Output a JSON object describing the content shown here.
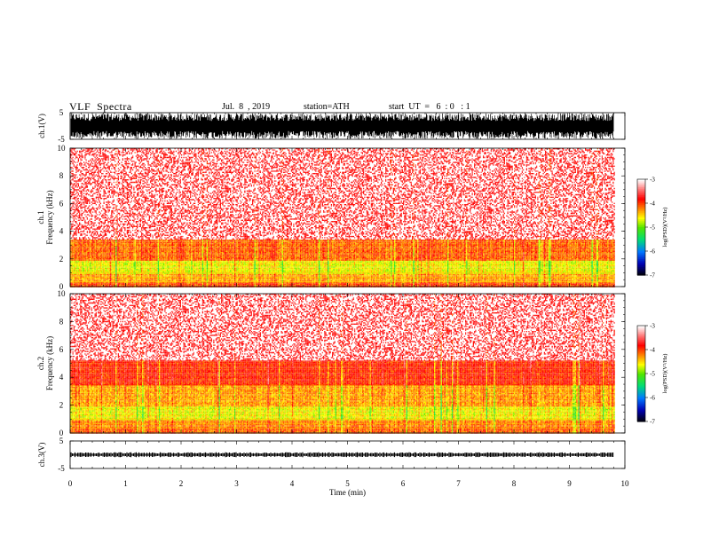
{
  "header": {
    "title": "VLF  Spectra",
    "date": "Jul.  8  , 2019",
    "station": "station=ATH",
    "start": "start  UT  =   6  : 0   : 1"
  },
  "chart_data": [
    {
      "type": "line",
      "panel": "ch1-waveform",
      "ylabel": "ch.1(V)",
      "ylim": [
        -5,
        5
      ],
      "yticks": [
        "5",
        "-5"
      ],
      "xlim": [
        0,
        10
      ],
      "data_end_min": 9.8,
      "amplitude_range": [
        -4.8,
        4.8
      ],
      "color": "#000000"
    },
    {
      "type": "heatmap",
      "panel": "ch1-spectrogram",
      "ylabel_channel": "ch.1",
      "ylabel": "Frequency (kHz)",
      "ylim": [
        0,
        10
      ],
      "yticks": [
        "0",
        "2",
        "4",
        "6",
        "8",
        "10"
      ],
      "xlim": [
        0,
        10
      ],
      "data_end_min": 9.8,
      "colorbar": {
        "label": "log(PSD)(V²/Hz)",
        "range": [
          -7,
          -3
        ],
        "ticks": [
          "-3",
          "-4",
          "-5",
          "-6",
          "-7"
        ]
      },
      "bands": [
        {
          "f": [
            0,
            0.3
          ],
          "level": -4.0
        },
        {
          "f": [
            0.3,
            1.0
          ],
          "level": -4.3
        },
        {
          "f": [
            1.0,
            1.9
          ],
          "level": -4.6
        },
        {
          "f": [
            1.9,
            3.4
          ],
          "level": -4.1
        },
        {
          "f": [
            3.4,
            5.1
          ],
          "level": -3.4
        },
        {
          "f": [
            5.1,
            10
          ],
          "level": -3.3
        }
      ]
    },
    {
      "type": "heatmap",
      "panel": "ch2-spectrogram",
      "ylabel_channel": "ch.2",
      "ylabel": "Frequency (kHz)",
      "ylim": [
        0,
        10
      ],
      "yticks": [
        "0",
        "2",
        "4",
        "6",
        "8",
        "10"
      ],
      "xlim": [
        0,
        10
      ],
      "data_end_min": 9.8,
      "colorbar": {
        "label": "log(PSD)(V²/Hz)",
        "range": [
          -7,
          -3
        ],
        "ticks": [
          "-3",
          "-4",
          "-5",
          "-6",
          "-7"
        ]
      },
      "bands": [
        {
          "f": [
            0,
            0.4
          ],
          "level": -4.1
        },
        {
          "f": [
            0.4,
            1.0
          ],
          "level": -4.2
        },
        {
          "f": [
            1.0,
            1.9
          ],
          "level": -4.6
        },
        {
          "f": [
            1.9,
            3.5
          ],
          "level": -4.3
        },
        {
          "f": [
            3.5,
            5.2
          ],
          "level": -3.9
        },
        {
          "f": [
            5.2,
            10
          ],
          "level": -3.3
        }
      ]
    },
    {
      "type": "line",
      "panel": "ch3-waveform",
      "ylabel": "ch.3(V)",
      "ylim": [
        -5,
        5
      ],
      "yticks": [
        "5",
        "-5"
      ],
      "xlim": [
        0,
        10
      ],
      "xticks": [
        "0",
        "1",
        "2",
        "3",
        "4",
        "5",
        "6",
        "7",
        "8",
        "9",
        "10"
      ],
      "xlabel": "Time  (min)",
      "data_end_min": 9.8,
      "baseline_v": 0,
      "color": "#000000"
    }
  ]
}
